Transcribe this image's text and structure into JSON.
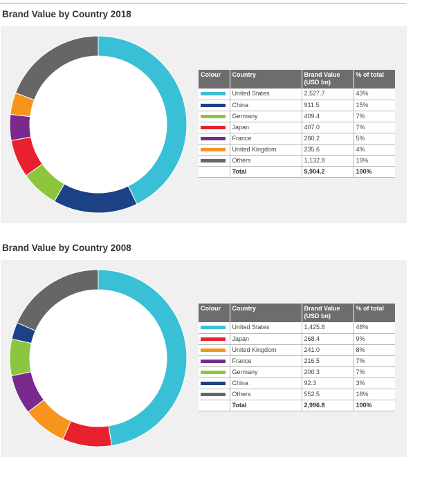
{
  "chart_data": [
    {
      "type": "pie",
      "style": "donut",
      "title": "Brand Value by Country 2018",
      "table_headers": [
        "Colour",
        "Country",
        "Brand Value (USD bn)",
        "% of total"
      ],
      "slices": [
        {
          "label": "United States",
          "value": 2527.7,
          "value_text": "2,527.7",
          "percent": "43%",
          "color": "#3ac0d6"
        },
        {
          "label": "China",
          "value": 911.5,
          "value_text": "911.5",
          "percent": "15%",
          "color": "#1c4184"
        },
        {
          "label": "Germany",
          "value": 409.4,
          "value_text": "409.4",
          "percent": "7%",
          "color": "#8cc63f"
        },
        {
          "label": "Japan",
          "value": 407.0,
          "value_text": "407.0",
          "percent": "7%",
          "color": "#e8212e"
        },
        {
          "label": "France",
          "value": 280.2,
          "value_text": "280.2",
          "percent": "5%",
          "color": "#7a2a8d"
        },
        {
          "label": "United Kingdom",
          "value": 235.6,
          "value_text": "235.6",
          "percent": "4%",
          "color": "#f7941d"
        },
        {
          "label": "Others",
          "value": 1132.8,
          "value_text": "1,132.8",
          "percent": "19%",
          "color": "#666666"
        }
      ],
      "total": {
        "label": "Total",
        "value_text": "5,904.2",
        "percent": "100%"
      }
    },
    {
      "type": "pie",
      "style": "donut",
      "title": "Brand Value by Country 2008",
      "table_headers": [
        "Colour",
        "Country",
        "Brand Value (USD bn)",
        "% of total"
      ],
      "slices": [
        {
          "label": "United States",
          "value": 1425.8,
          "value_text": "1,425.8",
          "percent": "48%",
          "color": "#3ac0d6"
        },
        {
          "label": "Japan",
          "value": 268.4,
          "value_text": "268.4",
          "percent": "9%",
          "color": "#e8212e"
        },
        {
          "label": "United Kingdom",
          "value": 241.0,
          "value_text": "241.0",
          "percent": "8%",
          "color": "#f7941d"
        },
        {
          "label": "France",
          "value": 216.5,
          "value_text": "216.5",
          "percent": "7%",
          "color": "#7a2a8d"
        },
        {
          "label": "Germany",
          "value": 200.3,
          "value_text": "200.3",
          "percent": "7%",
          "color": "#8cc63f"
        },
        {
          "label": "China",
          "value": 92.3,
          "value_text": "92.3",
          "percent": "3%",
          "color": "#1c4184"
        },
        {
          "label": "Others",
          "value": 552.5,
          "value_text": "552.5",
          "percent": "18%",
          "color": "#666666"
        }
      ],
      "total": {
        "label": "Total",
        "value_text": "2,996.8",
        "percent": "100%"
      }
    }
  ]
}
